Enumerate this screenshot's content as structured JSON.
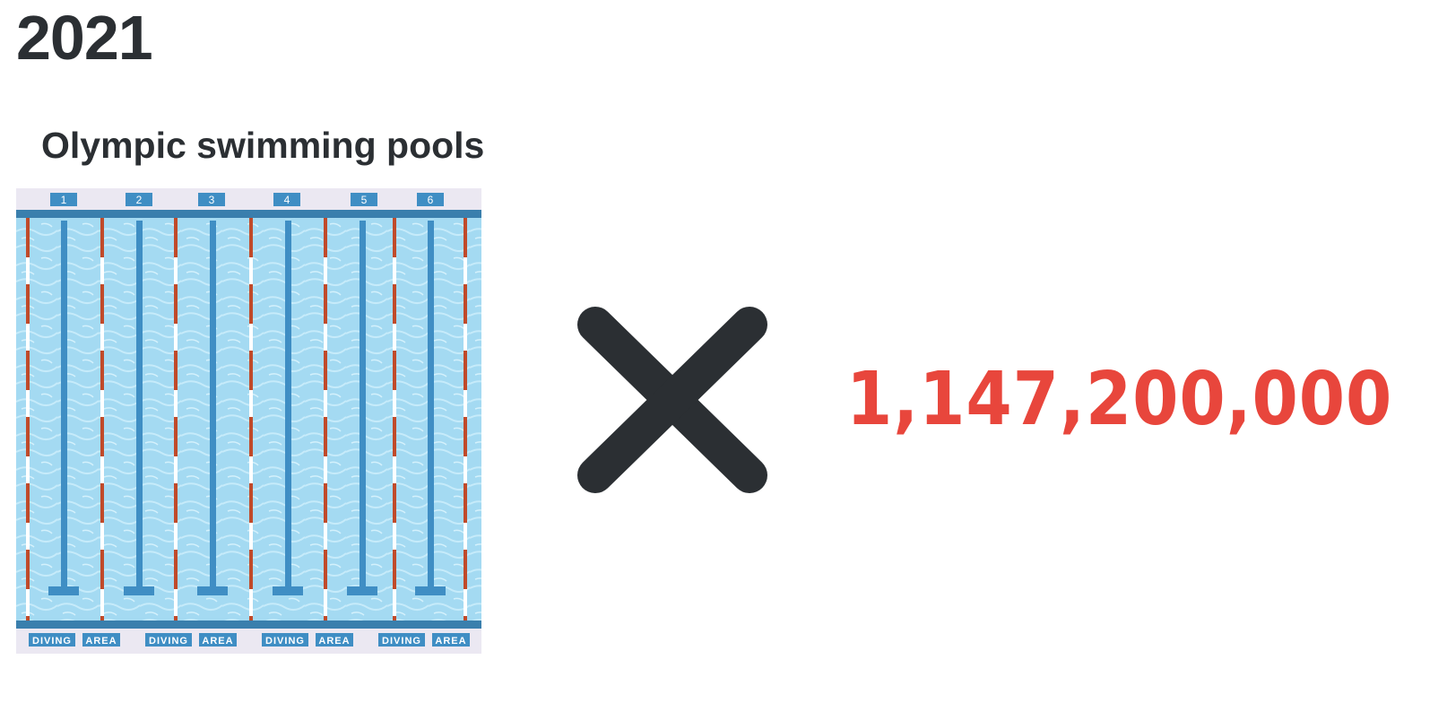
{
  "header": {
    "year": "2021"
  },
  "unit": {
    "label": "Olympic swimming pools",
    "icon": "swimming-pool-icon"
  },
  "pool": {
    "lanes": [
      "1",
      "2",
      "3",
      "4",
      "5",
      "6"
    ],
    "diving_labels": [
      "DIVING",
      "AREA",
      "DIVING",
      "AREA",
      "DIVING",
      "AREA",
      "DIVING",
      "AREA"
    ]
  },
  "operator": {
    "icon": "multiply-icon"
  },
  "multiplier": {
    "value": "1,147,200,000"
  },
  "colors": {
    "text": "#2b2f33",
    "accent": "#e8463c",
    "water": "#a9dcf2",
    "pool_edge": "#3a7fad"
  }
}
